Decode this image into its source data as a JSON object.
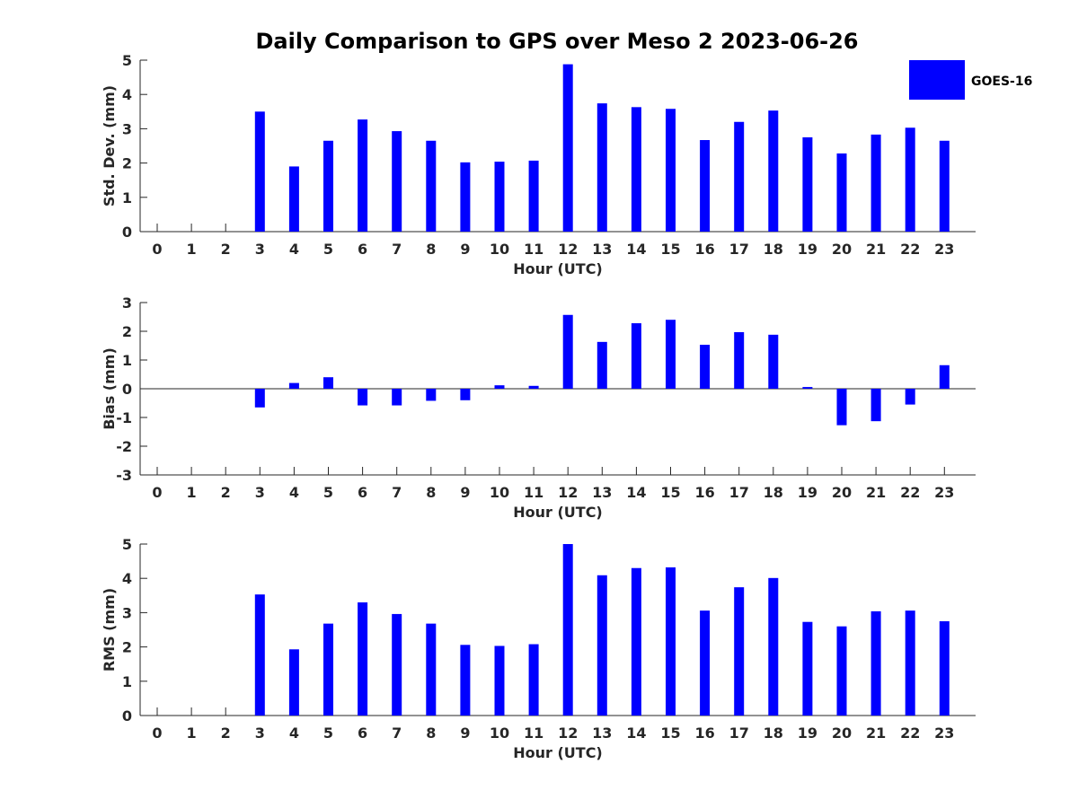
{
  "chart_data": [
    {
      "type": "bar",
      "title": "Daily Comparison to GPS over Meso 2 2023-06-26",
      "xlabel": "Hour (UTC)",
      "ylabel": "Std. Dev. (mm)",
      "categories": [
        "0",
        "1",
        "2",
        "3",
        "4",
        "5",
        "6",
        "7",
        "8",
        "9",
        "10",
        "11",
        "12",
        "13",
        "14",
        "15",
        "16",
        "17",
        "18",
        "19",
        "20",
        "21",
        "22",
        "23"
      ],
      "ylim": [
        0,
        5
      ],
      "yticks": [
        0,
        1,
        2,
        3,
        4,
        5
      ],
      "series": [
        {
          "name": "GOES-16",
          "values": [
            null,
            null,
            null,
            3.5,
            1.9,
            2.65,
            3.27,
            2.93,
            2.65,
            2.02,
            2.04,
            2.07,
            4.88,
            3.74,
            3.63,
            3.58,
            2.67,
            3.2,
            3.53,
            2.75,
            2.28,
            2.83,
            3.03,
            2.65
          ]
        }
      ]
    },
    {
      "type": "bar",
      "xlabel": "Hour (UTC)",
      "ylabel": "Bias (mm)",
      "categories": [
        "0",
        "1",
        "2",
        "3",
        "4",
        "5",
        "6",
        "7",
        "8",
        "9",
        "10",
        "11",
        "12",
        "13",
        "14",
        "15",
        "16",
        "17",
        "18",
        "19",
        "20",
        "21",
        "22",
        "23"
      ],
      "ylim": [
        -3,
        3
      ],
      "yticks": [
        -3,
        -2,
        -1,
        0,
        1,
        2,
        3
      ],
      "series": [
        {
          "name": "GOES-16",
          "values": [
            null,
            null,
            null,
            -0.65,
            0.2,
            0.4,
            -0.58,
            -0.58,
            -0.42,
            -0.4,
            0.12,
            0.1,
            2.57,
            1.63,
            2.28,
            2.4,
            1.53,
            1.97,
            1.88,
            0.06,
            -1.27,
            -1.13,
            -0.55,
            0.82
          ]
        }
      ]
    },
    {
      "type": "bar",
      "xlabel": "Hour (UTC)",
      "ylabel": "RMS (mm)",
      "categories": [
        "0",
        "1",
        "2",
        "3",
        "4",
        "5",
        "6",
        "7",
        "8",
        "9",
        "10",
        "11",
        "12",
        "13",
        "14",
        "15",
        "16",
        "17",
        "18",
        "19",
        "20",
        "21",
        "22",
        "23"
      ],
      "ylim": [
        0,
        5
      ],
      "yticks": [
        0,
        1,
        2,
        3,
        4,
        5
      ],
      "series": [
        {
          "name": "GOES-16",
          "values": [
            null,
            null,
            null,
            3.53,
            1.93,
            2.68,
            3.3,
            2.96,
            2.68,
            2.06,
            2.03,
            2.08,
            5.0,
            4.09,
            4.3,
            4.32,
            3.06,
            3.74,
            4.01,
            2.73,
            2.6,
            3.04,
            3.06,
            2.75
          ]
        }
      ]
    }
  ],
  "legend": {
    "label": "GOES-16",
    "color": "#0000ff"
  },
  "colors": {
    "bar": "#0000ff",
    "axis": "#262626"
  }
}
